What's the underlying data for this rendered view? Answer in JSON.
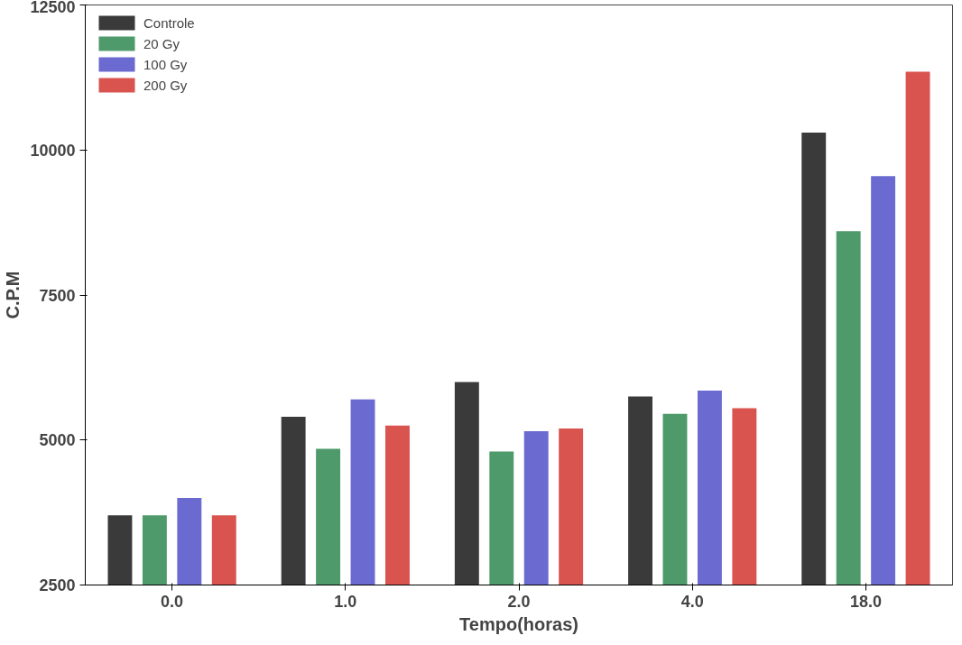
{
  "chart_data": {
    "type": "bar",
    "xlabel": "Tempo(horas)",
    "ylabel": "C.P.M",
    "categories": [
      "0.0",
      "1.0",
      "2.0",
      "4.0",
      "18.0"
    ],
    "series": [
      {
        "name": "Controle",
        "color": "#3a3a3a",
        "values": [
          3700,
          5400,
          6000,
          5750,
          10300
        ]
      },
      {
        "name": "20 Gy",
        "color": "#4e9a6a",
        "values": [
          3700,
          4850,
          4800,
          5450,
          8600
        ]
      },
      {
        "name": "100 Gy",
        "color": "#6a6ad0",
        "values": [
          4000,
          5700,
          5150,
          5850,
          9550
        ]
      },
      {
        "name": "200 Gy",
        "color": "#d9534f",
        "values": [
          3700,
          5250,
          5200,
          5550,
          11350
        ]
      }
    ],
    "ylim": [
      2500,
      12500
    ],
    "yticks": [
      2500,
      5000,
      7500,
      10000,
      12500
    ],
    "grid": false,
    "legend": "top left"
  }
}
